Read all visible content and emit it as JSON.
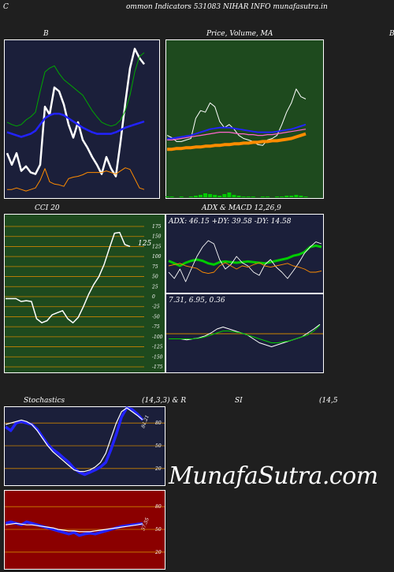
{
  "page": {
    "title": "ommon  Indicators 531083 NIHAR INFO munafasutra.in",
    "corner_left": "C",
    "watermark": "MunafaSutra.com"
  },
  "colors": {
    "page_bg": "#1f1f1f",
    "panel_navy": "#1b1f3a",
    "panel_green": "#1e4a1e",
    "panel_red": "#8b0000",
    "white": "#ffffff",
    "blue": "#2222ff",
    "bright_green": "#00cc00",
    "orange": "#ff8c00",
    "gridline": "#cc8400"
  },
  "labels": {
    "bb_title": "B",
    "bb_right_edge": "B",
    "price_title": "Price,  Volume,  MA",
    "cci_title": "CCI 20",
    "cci_value": "125",
    "adx_macd_title": "ADX  & MACD 12,26,9",
    "adx_readout": "ADX: 46.15  +DY: 39.58  -DY: 14.58",
    "macd_readout": "7.31,  6.95,  0.36",
    "stoch_title": "Stochastics",
    "stoch_params": "(14,3,3) & R",
    "rsi_title": "SI",
    "rsi_params": "(14,5",
    "stoch_value": "84.21",
    "rsi_value": "57.55"
  },
  "chart_data": [
    {
      "type": "line",
      "panel": "bollinger",
      "title": "B",
      "series": [
        {
          "color": "#ffffff",
          "values": [
            55,
            40,
            55,
            32,
            38,
            30,
            28,
            40,
            115,
            105,
            140,
            135,
            118,
            92,
            75,
            95,
            72,
            62,
            50,
            40,
            28,
            50,
            35,
            25,
            70,
            120,
            165,
            190,
            178,
            170
          ]
        },
        {
          "color": "#00aa00",
          "values": [
            95,
            92,
            90,
            92,
            98,
            102,
            108,
            135,
            160,
            165,
            168,
            158,
            150,
            145,
            140,
            135,
            130,
            120,
            110,
            102,
            95,
            92,
            90,
            92,
            98,
            110,
            130,
            160,
            180,
            185
          ]
        },
        {
          "color": "#2222ff",
          "values": [
            82,
            80,
            78,
            76,
            78,
            80,
            84,
            92,
            100,
            104,
            106,
            106,
            104,
            100,
            96,
            92,
            88,
            85,
            82,
            80,
            80,
            80,
            80,
            82,
            85,
            88,
            90,
            92,
            94,
            96
          ]
        },
        {
          "color": "#ff8c00",
          "values": [
            8,
            8,
            10,
            8,
            6,
            8,
            10,
            20,
            35,
            18,
            15,
            14,
            12,
            22,
            24,
            25,
            27,
            30,
            30,
            30,
            30,
            32,
            30,
            28,
            32,
            36,
            34,
            22,
            10,
            8
          ]
        }
      ]
    },
    {
      "type": "line",
      "panel": "price_volume_ma",
      "title": "Price,  Volume,  MA",
      "series": [
        {
          "color": "#ffffff",
          "values": [
            78,
            75,
            70,
            70,
            72,
            74,
            100,
            110,
            108,
            120,
            115,
            96,
            88,
            92,
            86,
            78,
            74,
            72,
            70,
            66,
            65,
            72,
            74,
            78,
            92,
            108,
            120,
            138,
            128,
            125
          ]
        },
        {
          "color": "#ff8c00",
          "values": [
            60,
            60,
            61,
            61,
            62,
            62,
            63,
            63,
            64,
            64,
            65,
            65,
            66,
            66,
            67,
            67,
            68,
            68,
            69,
            69,
            70,
            70,
            71,
            71,
            72,
            73,
            74,
            76,
            78,
            80
          ]
        },
        {
          "color": "#2222ff",
          "values": [
            74,
            74,
            75,
            76,
            77,
            78,
            80,
            82,
            84,
            86,
            87,
            88,
            88,
            88,
            87,
            86,
            85,
            84,
            83,
            82,
            82,
            82,
            82,
            83,
            84,
            85,
            86,
            88,
            90,
            92
          ]
        },
        {
          "color": "#ff66cc",
          "values": [
            72,
            72,
            73,
            74,
            75,
            76,
            77,
            78,
            79,
            80,
            81,
            82,
            82,
            82,
            81,
            80,
            80,
            79,
            79,
            78,
            78,
            79,
            79,
            80,
            81,
            82,
            83,
            84,
            85,
            86
          ]
        }
      ],
      "volume": [
        1,
        1,
        0,
        1,
        0,
        1,
        2,
        3,
        5,
        4,
        3,
        2,
        4,
        6,
        3,
        2,
        1,
        1,
        1,
        0,
        1,
        1,
        0,
        1,
        1,
        2,
        2,
        3,
        2,
        1
      ]
    },
    {
      "type": "line",
      "panel": "cci",
      "title": "CCI 20",
      "ylim": [
        -175,
        175
      ],
      "yticks": [
        175,
        150,
        125,
        100,
        75,
        50,
        25,
        0,
        -25,
        -50,
        -75,
        -100,
        -125,
        -150,
        -175
      ],
      "series": [
        {
          "color": "#ffffff",
          "values": [
            -5,
            -5,
            -5,
            -12,
            -10,
            -12,
            -55,
            -65,
            -60,
            -45,
            -40,
            -35,
            -55,
            -65,
            -52,
            -25,
            5,
            30,
            50,
            80,
            120,
            158,
            160,
            130,
            125
          ]
        }
      ]
    },
    {
      "type": "line",
      "panel": "adx",
      "title": "ADX  & MACD 12,26,9",
      "series": [
        {
          "color": "#00cc00",
          "values": [
            48,
            44,
            40,
            45,
            48,
            50,
            48,
            44,
            42,
            46,
            47,
            46,
            45,
            46,
            47,
            46,
            45,
            44,
            46,
            48,
            50,
            52,
            56,
            58,
            62,
            70,
            72,
            70
          ]
        },
        {
          "color": "#ffffff",
          "values": [
            30,
            20,
            35,
            15,
            35,
            55,
            70,
            80,
            75,
            50,
            35,
            42,
            55,
            45,
            40,
            30,
            25,
            42,
            50,
            38,
            30,
            20,
            32,
            45,
            60,
            70,
            78,
            75
          ]
        },
        {
          "color": "#ff8c00",
          "values": [
            40,
            42,
            44,
            40,
            38,
            36,
            30,
            28,
            30,
            40,
            45,
            40,
            35,
            40,
            38,
            42,
            45,
            40,
            38,
            40,
            42,
            44,
            40,
            38,
            35,
            30,
            30,
            32
          ]
        }
      ]
    },
    {
      "type": "line",
      "panel": "macd",
      "series": [
        {
          "color": "#ffffff",
          "values": [
            0,
            0,
            0,
            -0.5,
            0,
            0.5,
            1.5,
            3,
            5,
            6,
            5,
            4,
            3,
            2,
            0,
            -2,
            -3,
            -4,
            -3,
            -2,
            -1,
            0,
            1,
            3,
            5,
            7.31
          ]
        },
        {
          "color": "#00cc00",
          "values": [
            0,
            0,
            0,
            0,
            0,
            0.3,
            1,
            2,
            3,
            4,
            4,
            3.5,
            3,
            2,
            1,
            0,
            -1,
            -2,
            -2,
            -1.5,
            -1,
            0,
            1,
            2,
            4,
            6.95
          ]
        }
      ]
    },
    {
      "type": "line",
      "panel": "stochastics",
      "title": "Stochastics",
      "yticks": [
        80,
        50,
        20
      ],
      "series": [
        {
          "color": "#2222ff",
          "values": [
            75,
            70,
            80,
            82,
            80,
            78,
            72,
            62,
            52,
            45,
            40,
            34,
            28,
            20,
            15,
            12,
            15,
            18,
            22,
            28,
            45,
            65,
            88,
            100,
            98,
            92,
            84.21
          ]
        },
        {
          "color": "#ffffff",
          "values": [
            78,
            80,
            82,
            84,
            82,
            78,
            70,
            60,
            50,
            42,
            36,
            30,
            24,
            18,
            16,
            16,
            18,
            22,
            28,
            40,
            60,
            80,
            95,
            100,
            95,
            90,
            84.21
          ]
        }
      ]
    },
    {
      "type": "line",
      "panel": "rsi",
      "title": "SI",
      "yticks": [
        80,
        50,
        20
      ],
      "series": [
        {
          "color": "#2222ff",
          "values": [
            58,
            60,
            58,
            56,
            60,
            58,
            56,
            54,
            52,
            50,
            48,
            46,
            44,
            46,
            42,
            44,
            45,
            44,
            46,
            48,
            50,
            52,
            54,
            55,
            56,
            57,
            57.55
          ]
        },
        {
          "color": "#ffffff",
          "values": [
            56,
            57,
            58,
            57,
            56,
            56,
            55,
            54,
            53,
            52,
            50,
            49,
            48,
            48,
            47,
            47,
            47,
            48,
            49,
            50,
            51,
            52,
            53,
            54,
            55,
            56,
            57.55
          ]
        }
      ]
    }
  ]
}
